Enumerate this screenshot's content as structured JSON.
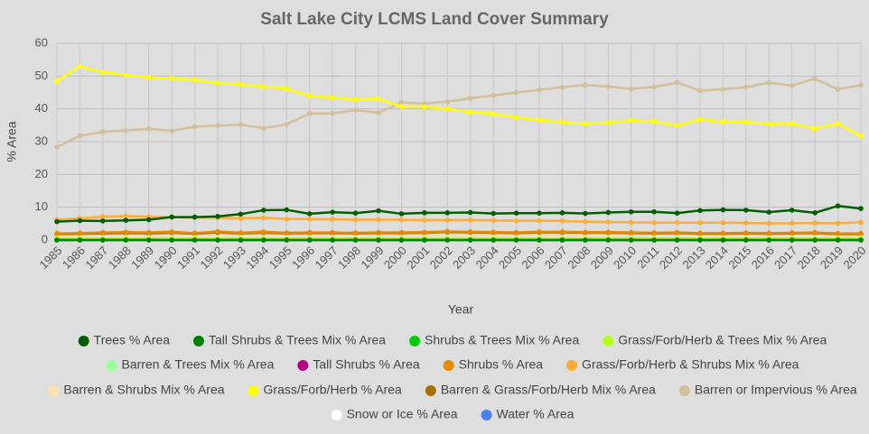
{
  "chart_data": {
    "type": "line",
    "title": "Salt Lake City LCMS Land Cover Summary",
    "x_label": "Year",
    "y_label": "% Area",
    "x": [
      1985,
      1986,
      1987,
      1988,
      1989,
      1990,
      1991,
      1992,
      1993,
      1994,
      1995,
      1996,
      1997,
      1998,
      1999,
      2000,
      2001,
      2002,
      2003,
      2004,
      2005,
      2006,
      2007,
      2008,
      2009,
      2010,
      2011,
      2012,
      2013,
      2014,
      2015,
      2016,
      2017,
      2018,
      2019,
      2020
    ],
    "xlim": [
      1985,
      2020
    ],
    "ylim": [
      0,
      60
    ],
    "yticks": [
      0,
      10,
      20,
      30,
      40,
      50,
      60
    ],
    "grid": true,
    "legend": "bottom",
    "series": [
      {
        "name": "Trees % Area",
        "color": "#005e00",
        "values": [
          5.6,
          5.9,
          5.8,
          6,
          6.2,
          7,
          7,
          7.2,
          7.9,
          9.1,
          9.2,
          8,
          8.5,
          8.2,
          8.9,
          8,
          8.3,
          8.3,
          8.4,
          8.1,
          8.2,
          8.2,
          8.3,
          8.1,
          8.4,
          8.6,
          8.6,
          8.2,
          9,
          9.2,
          9.1,
          8.5,
          9.1,
          8.3,
          10.4,
          9.6
        ]
      },
      {
        "name": "Tall Shrubs & Trees Mix % Area",
        "color": "#008000",
        "values": [
          0,
          0,
          0,
          0,
          0,
          0,
          0,
          0,
          0,
          0,
          0,
          0,
          0,
          0,
          0,
          0,
          0,
          0,
          0,
          0,
          0,
          0,
          0,
          0,
          0,
          0,
          0,
          0,
          0,
          0,
          0,
          0,
          0,
          0,
          0,
          0
        ]
      },
      {
        "name": "Shrubs & Trees Mix % Area",
        "color": "#00cc00",
        "values": [
          0,
          0,
          0,
          0,
          0,
          0,
          0,
          0,
          0,
          0,
          0,
          0,
          0,
          0,
          0,
          0,
          0,
          0,
          0,
          0,
          0,
          0,
          0,
          0,
          0,
          0,
          0,
          0,
          0,
          0,
          0,
          0,
          0,
          0,
          0,
          0
        ]
      },
      {
        "name": "Grass/Forb/Herb & Trees Mix % Area",
        "color": "#b3ff1a",
        "values": [
          0.5,
          0.5,
          0.5,
          0.5,
          0.5,
          0.5,
          0.5,
          0.5,
          0.5,
          0.5,
          0.5,
          0.5,
          0.5,
          0.5,
          0.5,
          0.5,
          0.5,
          0.5,
          0.5,
          0.5,
          0.5,
          0.5,
          0.5,
          0.5,
          0.5,
          0.5,
          0.5,
          0.5,
          0.5,
          0.5,
          0.5,
          0.5,
          0.5,
          0.5,
          0.5,
          0.5
        ]
      },
      {
        "name": "Barren & Trees Mix % Area",
        "color": "#99ff99",
        "values": [
          0,
          0,
          0,
          0,
          0,
          0,
          0,
          0,
          0,
          0,
          0,
          0,
          0,
          0,
          0,
          0,
          0,
          0,
          0,
          0,
          0,
          0,
          0,
          0,
          0,
          0,
          0,
          0,
          0,
          0,
          0,
          0,
          0,
          0,
          0,
          0
        ]
      },
      {
        "name": "Tall Shrubs % Area",
        "color": "#b30088",
        "values": [
          0,
          0,
          0,
          0,
          0,
          0,
          0,
          0,
          0,
          0,
          0,
          0,
          0,
          0,
          0,
          0,
          0,
          0,
          0,
          0,
          0,
          0,
          0,
          0,
          0,
          0,
          0,
          0,
          0,
          0,
          0,
          0,
          0,
          0,
          0,
          0
        ]
      },
      {
        "name": "Shrubs % Area",
        "color": "#e68a00",
        "values": [
          2,
          2.1,
          2.3,
          2.4,
          2.3,
          2.5,
          2.1,
          2.6,
          2.2,
          2.5,
          2.2,
          2.3,
          2.3,
          2.2,
          2.3,
          2.3,
          2.4,
          2.6,
          2.5,
          2.4,
          2.3,
          2.5,
          2.5,
          2.4,
          2.4,
          2.3,
          2.2,
          2.3,
          2.1,
          2.1,
          2.2,
          2.1,
          2.2,
          2.3,
          2,
          2
        ]
      },
      {
        "name": "Grass/Forb/Herb & Shrubs Mix % Area",
        "color": "#ffad33",
        "values": [
          6.2,
          6.6,
          7.1,
          7.3,
          7.1,
          7,
          6.8,
          6.8,
          6.6,
          6.8,
          6.4,
          6.4,
          6.3,
          6.2,
          6.2,
          6.2,
          6.1,
          6.1,
          6.1,
          6,
          5.9,
          5.9,
          5.8,
          5.6,
          5.5,
          5.4,
          5.3,
          5.3,
          5.3,
          5.3,
          5.2,
          5.1,
          5.1,
          5.2,
          5.1,
          5.4
        ]
      },
      {
        "name": "Barren & Shrubs Mix % Area",
        "color": "#ffe0b3",
        "values": [
          0.8,
          0.8,
          0.8,
          0.8,
          0.8,
          0.8,
          0.8,
          0.8,
          0.8,
          0.8,
          0.8,
          0.8,
          0.8,
          0.8,
          0.8,
          0.8,
          0.8,
          0.8,
          0.8,
          0.8,
          0.8,
          0.8,
          0.8,
          0.8,
          0.8,
          0.8,
          0.8,
          0.8,
          0.8,
          0.8,
          0.8,
          0.8,
          0.8,
          0.8,
          0.8,
          0.8
        ]
      },
      {
        "name": "Grass/Forb/Herb % Area",
        "color": "#ffff00",
        "values": [
          48.4,
          53,
          51.2,
          50.3,
          49.6,
          49.3,
          48.9,
          47.9,
          47.5,
          46.8,
          46.2,
          44,
          43.4,
          42.9,
          43.1,
          40.7,
          40.6,
          40,
          39,
          38.5,
          37.4,
          36.6,
          36,
          35.4,
          35.8,
          36.5,
          36.2,
          34.9,
          36.8,
          36.1,
          36,
          35.4,
          35.5,
          34,
          35.5,
          31.8
        ]
      },
      {
        "name": "Barren & Grass/Forb/Herb Mix % Area",
        "color": "#a87000",
        "values": [
          1.8,
          1.9,
          2,
          2.1,
          2,
          2.2,
          1.9,
          2.3,
          2,
          2.2,
          2,
          2.1,
          2.1,
          2,
          2.1,
          2.1,
          2.2,
          2.4,
          2.3,
          2.2,
          2.1,
          2.3,
          2.3,
          2.2,
          2.2,
          2.1,
          2,
          2.1,
          1.9,
          1.9,
          2,
          1.9,
          2,
          2.1,
          1.8,
          1.8
        ]
      },
      {
        "name": "Barren or Impervious % Area",
        "color": "#d3bf9b",
        "values": [
          28.3,
          31.8,
          33,
          33.4,
          33.9,
          33.3,
          34.6,
          34.9,
          35.2,
          34.1,
          35.3,
          38.6,
          38.6,
          39.6,
          38.8,
          42,
          41.6,
          42.2,
          43.2,
          44.1,
          45,
          45.8,
          46.6,
          47.3,
          46.8,
          46.1,
          46.7,
          48,
          45.6,
          46,
          46.6,
          48,
          47.1,
          49.2,
          46,
          47.2
        ]
      },
      {
        "name": "Snow or Ice % Area",
        "color": "#ffffff",
        "values": [
          0,
          0,
          0,
          0,
          0,
          0,
          0,
          0,
          0,
          0,
          0,
          0,
          0,
          0,
          0,
          0,
          0,
          0,
          0,
          0,
          0,
          0,
          0,
          0,
          0,
          0,
          0,
          0,
          0,
          0,
          0,
          0,
          0,
          0,
          0,
          0
        ]
      },
      {
        "name": "Water % Area",
        "color": "#4780f3",
        "values": [
          0,
          0,
          0,
          0,
          0,
          0,
          0,
          0,
          0,
          0,
          0,
          0,
          0,
          0,
          0,
          0,
          0,
          0,
          0,
          0,
          0,
          0,
          0,
          0,
          0,
          0,
          0,
          0,
          0,
          0,
          0,
          0,
          0,
          0,
          0,
          0
        ]
      }
    ]
  }
}
